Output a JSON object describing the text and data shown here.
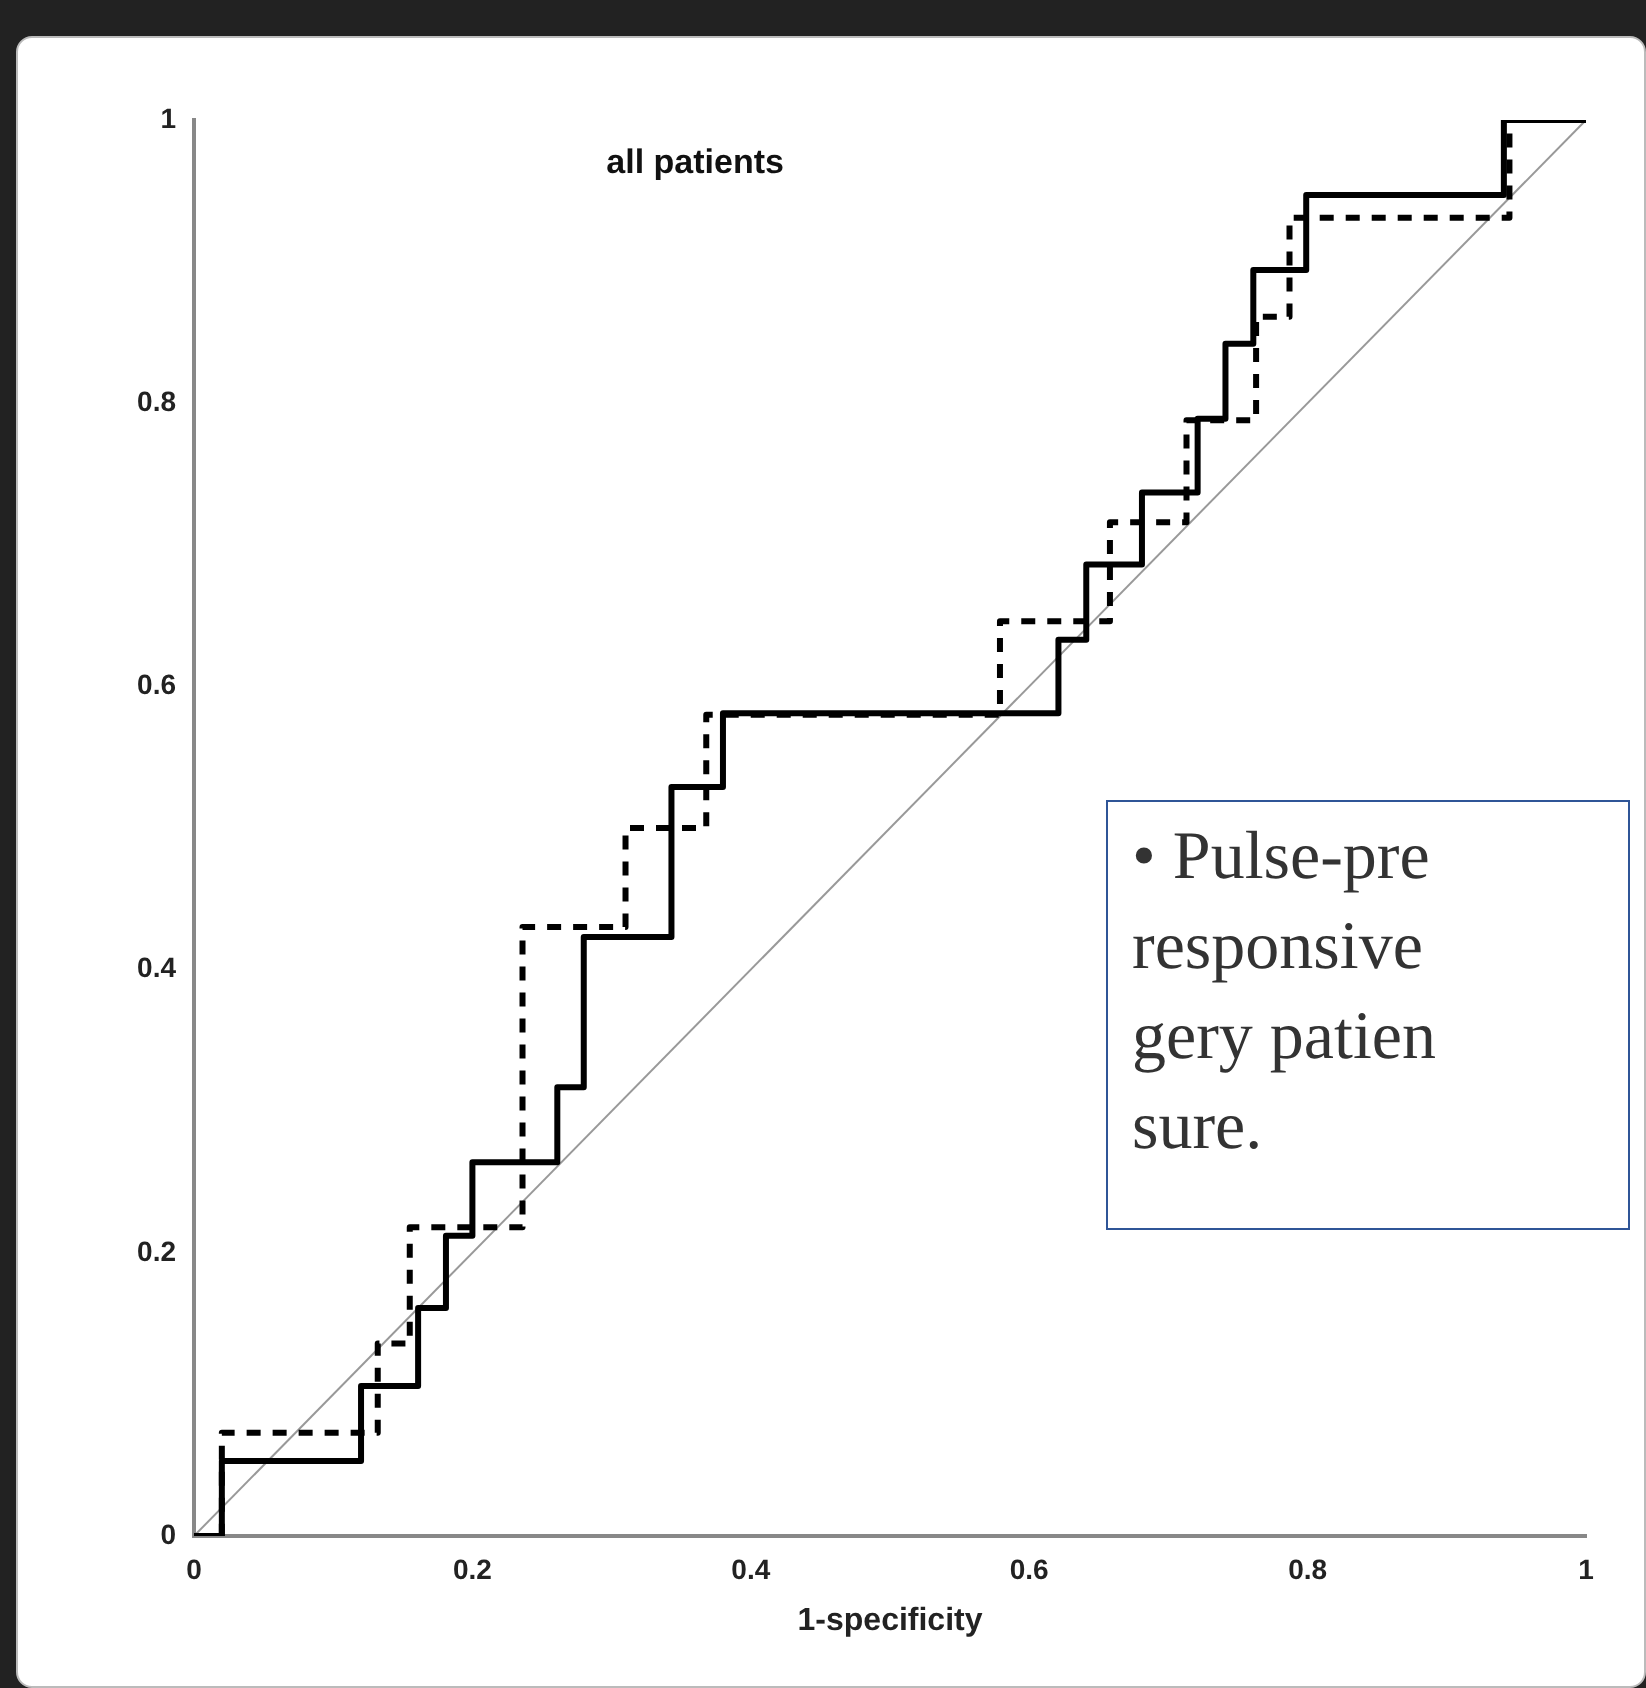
{
  "chart_data": {
    "type": "step",
    "title": "all patients",
    "xlabel": "1-specificity",
    "xlim": [
      0,
      1
    ],
    "xticks": [
      0,
      0.2,
      0.4,
      0.6,
      0.8,
      1
    ],
    "ylim": [
      0,
      1
    ],
    "yticks": [
      0,
      0.2,
      0.4,
      0.6,
      0.8,
      1
    ],
    "grid": false,
    "legend": false,
    "series": [
      {
        "color": "#000000",
        "line_style": "solid",
        "x": [
          0,
          0.02,
          0.12,
          0.161,
          0.181,
          0.2,
          0.261,
          0.28,
          0.343,
          0.38,
          0.621,
          0.641,
          0.681,
          0.721,
          0.741,
          0.761,
          0.799,
          0.941,
          1
        ],
        "values": [
          0,
          0.053,
          0.106,
          0.161,
          0.212,
          0.264,
          0.317,
          0.423,
          0.529,
          0.581,
          0.633,
          0.686,
          0.737,
          0.789,
          0.842,
          0.894,
          0.947,
          1,
          1
        ]
      },
      {
        "color": "#000000",
        "line_style": "dashed",
        "x": [
          0,
          0.02,
          0.132,
          0.155,
          0.236,
          0.31,
          0.368,
          0.579,
          0.658,
          0.713,
          0.763,
          0.787,
          0.945,
          1
        ],
        "values": [
          0,
          0.073,
          0.136,
          0.218,
          0.43,
          0.5,
          0.58,
          0.646,
          0.716,
          0.788,
          0.861,
          0.931,
          1,
          1
        ]
      },
      {
        "type": "line",
        "color": "#999999",
        "line_style": "solid",
        "x": [
          0,
          1
        ],
        "values": [
          0,
          1
        ]
      }
    ],
    "annotations": [
      "• Pulse-pre\nresponsive\ngery patien\nsure."
    ]
  }
}
